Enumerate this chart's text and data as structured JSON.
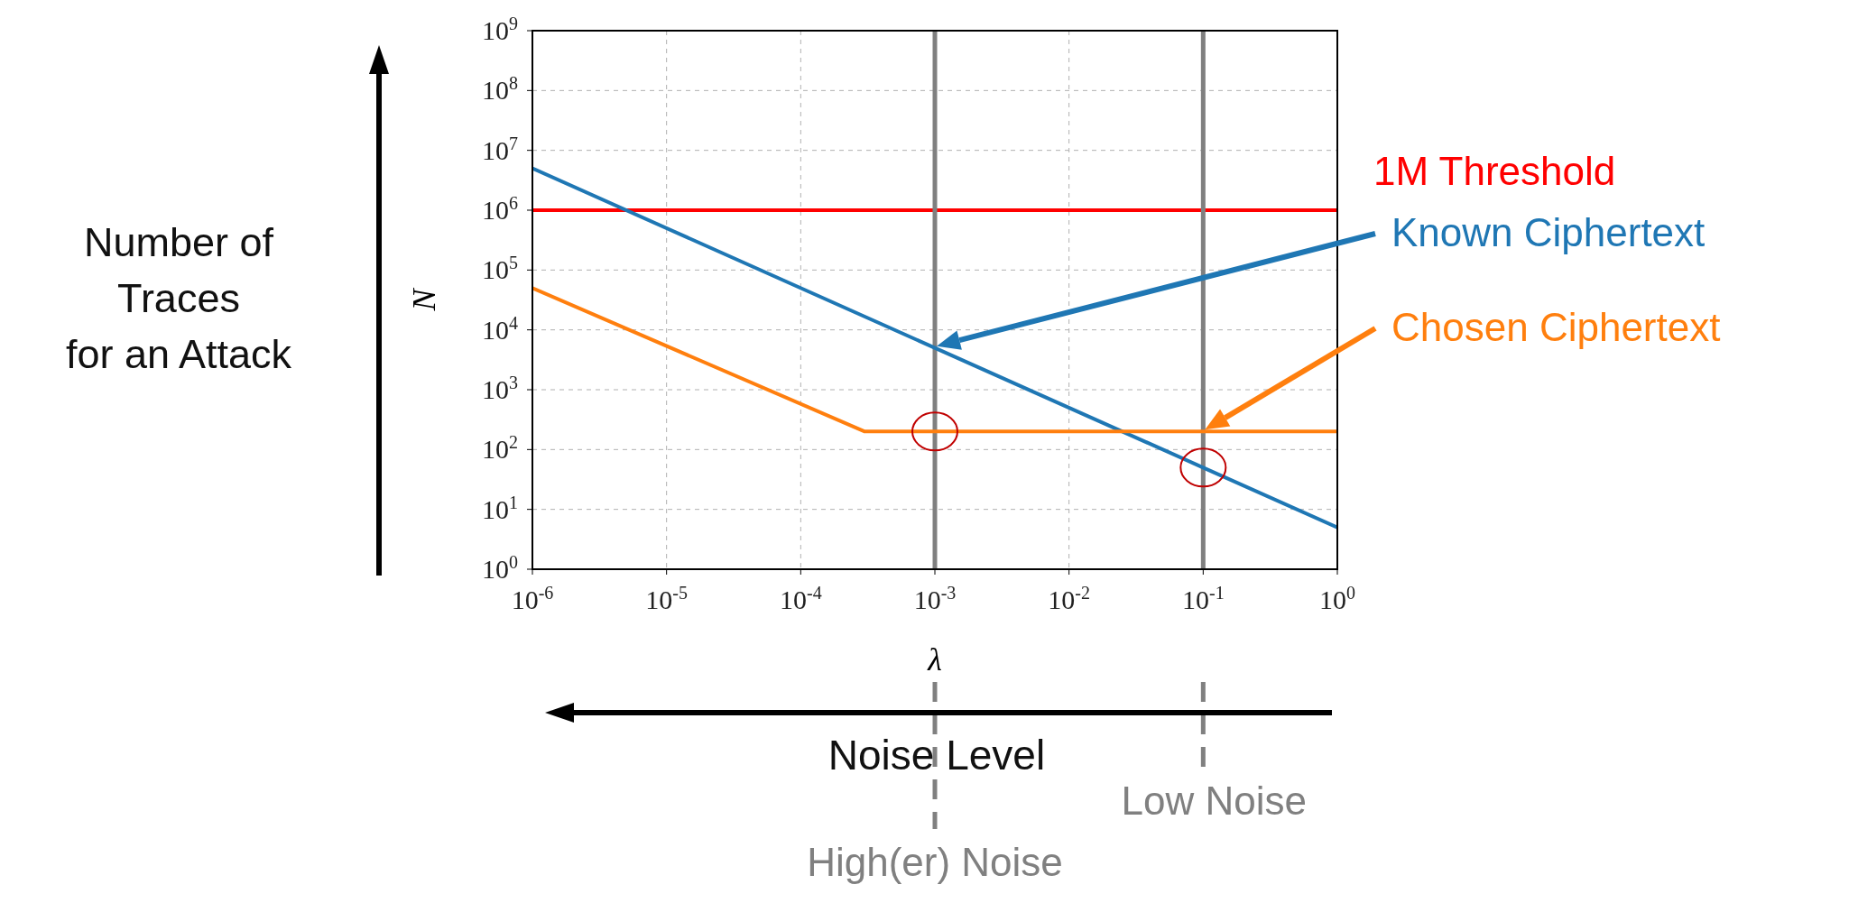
{
  "chart_data": {
    "type": "line",
    "xlabel": "λ",
    "ylabel": "N",
    "log": "xy",
    "grid": true,
    "legend": false,
    "marker": "none",
    "line_style": "solid",
    "xlim": [
      1e-06,
      1
    ],
    "xticks": [
      {
        "value": 1e-06,
        "label": "10$^{-6}$"
      },
      {
        "value": 1e-05,
        "label": "10$^{-5}$"
      },
      {
        "value": 0.0001,
        "label": "10$^{-4}$"
      },
      {
        "value": 0.001,
        "label": "10$^{-3}$"
      },
      {
        "value": 0.01,
        "label": "10$^{-2}$"
      },
      {
        "value": 0.1,
        "label": "10$^{-1}$"
      },
      {
        "value": 1,
        "label": "10$^{0}$"
      }
    ],
    "ylim": [
      1,
      1000000000
    ],
    "yticks": [
      {
        "value": 1,
        "label": "10$^{0}$"
      },
      {
        "value": 10,
        "label": "10$^{1}$"
      },
      {
        "value": 100,
        "label": "10$^{2}$"
      },
      {
        "value": 1000,
        "label": "10$^{3}$"
      },
      {
        "value": 10000,
        "label": "10$^{4}$"
      },
      {
        "value": 100000,
        "label": "10$^{5}$"
      },
      {
        "value": 1000000,
        "label": "10$^{6}$"
      },
      {
        "value": 10000000,
        "label": "10$^{7}$"
      },
      {
        "value": 100000000,
        "label": "10$^{8}$"
      },
      {
        "value": 1000000000,
        "label": "10$^{9}$"
      }
    ],
    "series": [
      {
        "color": "#1f77b4",
        "x": [
          1e-06,
          0.1,
          1
        ],
        "values": [
          5000000,
          50,
          5
        ]
      },
      {
        "color": "#ff7f0e",
        "x": [
          1e-06,
          0.0003,
          0.001,
          1
        ],
        "values": [
          50000,
          200,
          200,
          200
        ]
      }
    ],
    "ref_lines": [
      {
        "axis": "y",
        "value": 1000000,
        "label": "1M Threshold",
        "color": "#ff0000"
      },
      {
        "axis": "x",
        "value": 0.001,
        "label": "High(er) Noise",
        "color": "#808080"
      },
      {
        "axis": "x",
        "value": 0.1,
        "label": "Low Noise",
        "color": "#808080"
      }
    ],
    "annotations": [
      "Number of\nTraces\nfor an Attack",
      "Noise Level",
      "Known Ciphertext",
      "Chosen Ciphertext"
    ]
  }
}
